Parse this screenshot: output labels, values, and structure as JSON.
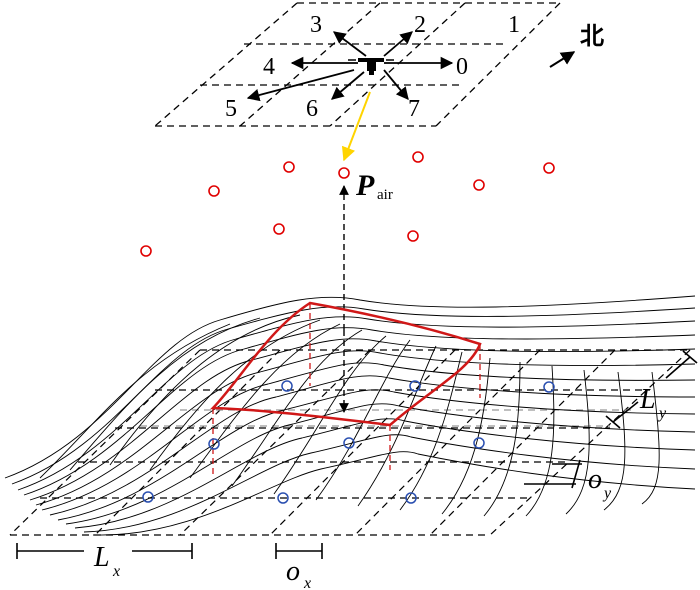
{
  "direction_labels": {
    "d0": "0",
    "d1": "1",
    "d2": "2",
    "d3": "3",
    "d4": "4",
    "d5": "5",
    "d6": "6",
    "d7": "7"
  },
  "north_label": "北",
  "p_air": {
    "symbol": "P",
    "subscript": "air"
  },
  "l_x": {
    "symbol": "L",
    "subscript": "x"
  },
  "l_y": {
    "symbol": "L",
    "subscript": "y"
  },
  "o_x": {
    "symbol": "o",
    "subscript": "x"
  },
  "o_y": {
    "symbol": "o",
    "subscript": "y"
  },
  "colors": {
    "line": "#000000",
    "air_point": "#e00000",
    "ground_point": "#2a4fb0",
    "highlight": "#d01818",
    "arrow_yellow": "#ffd400",
    "ref_dash": "#999999"
  },
  "icons": [
    "drone-icon",
    "north-arrow-icon"
  ]
}
